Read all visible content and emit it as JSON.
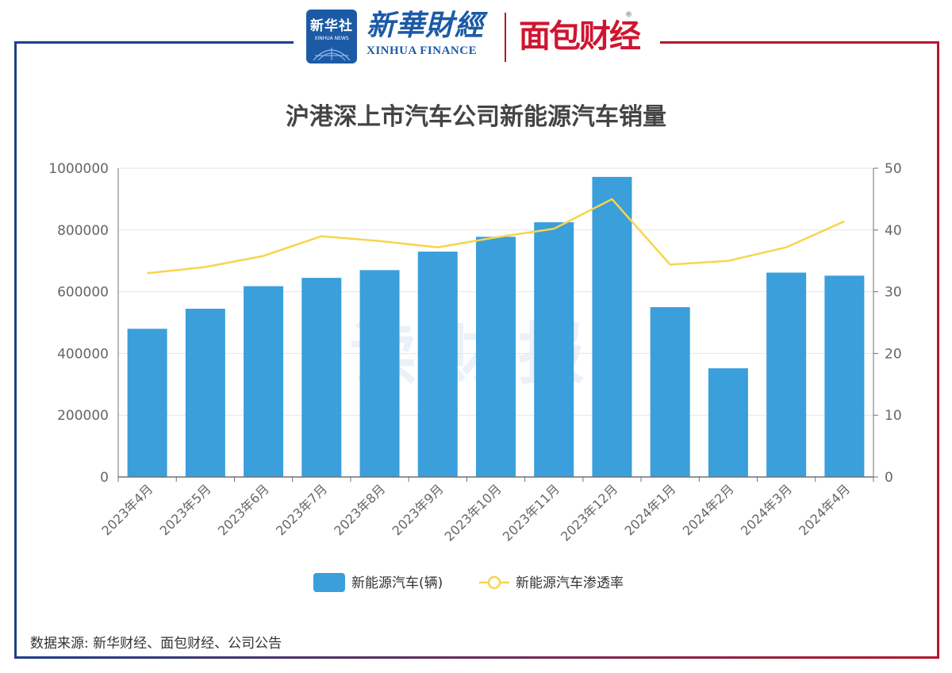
{
  "logos": {
    "xinhua_cn": "新华社",
    "xinhua_en": "XINHUA NEWS",
    "finance_cn": "新華財經",
    "finance_en": "XINHUA FINANCE",
    "mianbao": "面包财经",
    "registered": "®"
  },
  "watermark": "读财报",
  "source": "数据来源: 新华财经、面包财经、公司公告",
  "colors": {
    "frame_left": "#1c3f8a",
    "frame_right": "#b5162b",
    "bar": "#3a9fdb",
    "line": "#f7d54c",
    "grid": "#e3e6ef",
    "axis": "#6e7079"
  },
  "chart_data": {
    "type": "bar",
    "title": "沪港深上市汽车公司新能源汽车销量",
    "categories": [
      "2023年4月",
      "2023年5月",
      "2023年6月",
      "2023年7月",
      "2023年8月",
      "2023年9月",
      "2023年10月",
      "2023年11月",
      "2023年12月",
      "2024年1月",
      "2024年2月",
      "2024年3月",
      "2024年4月"
    ],
    "series": [
      {
        "name": "新能源汽车(辆)",
        "type": "bar",
        "axis": "left",
        "values": [
          480000,
          545000,
          618000,
          645000,
          670000,
          730000,
          778000,
          825000,
          972000,
          550000,
          352000,
          662000,
          652000
        ]
      },
      {
        "name": "新能源汽车渗透率",
        "type": "line",
        "axis": "right",
        "values": [
          33.0,
          34.0,
          35.8,
          39.0,
          38.2,
          37.2,
          38.8,
          40.2,
          45.0,
          34.4,
          35.0,
          37.2,
          41.4
        ]
      }
    ],
    "y_left": {
      "min": 0,
      "max": 1000000,
      "ticks": [
        "0",
        "200000",
        "400000",
        "600000",
        "800000",
        "1000000"
      ]
    },
    "y_right": {
      "min": 0,
      "max": 50,
      "ticks": [
        "0",
        "10",
        "20",
        "30",
        "40",
        "50"
      ]
    },
    "xlabel": "",
    "ylabel": "",
    "grid": true,
    "legend": "bottom"
  }
}
